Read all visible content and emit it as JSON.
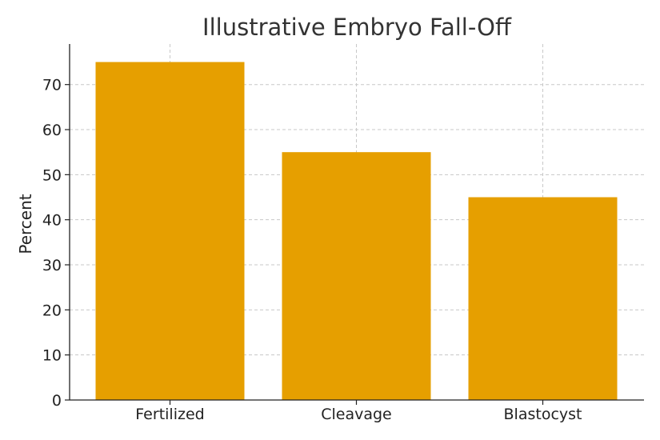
{
  "chart_data": {
    "type": "bar",
    "title": "Illustrative Embryo Fall-Off",
    "xlabel": "",
    "ylabel": "Percent",
    "categories": [
      "Fertilized",
      "Cleavage",
      "Blastocyst"
    ],
    "values": [
      75,
      55,
      45
    ],
    "ylim": [
      0,
      79
    ],
    "yticks": [
      0,
      10,
      20,
      30,
      40,
      50,
      60,
      70
    ],
    "grid": true,
    "bar_color": "#E69F00"
  }
}
